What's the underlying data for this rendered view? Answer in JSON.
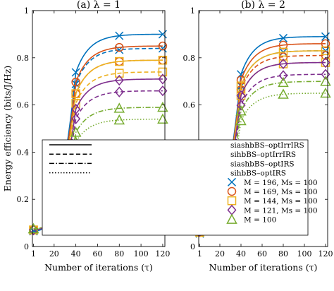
{
  "chart_data": [
    {
      "type": "line",
      "title": "(a) λ = 1",
      "xlabel": "Number of iterations (τ)",
      "ylabel": "Energy efficiency (bits/J/Hz)",
      "xlim": [
        0,
        122
      ],
      "ylim": [
        0,
        1
      ],
      "x_ticks": [
        1,
        20,
        40,
        60,
        80,
        100,
        120
      ],
      "y_ticks": [
        0,
        0.2,
        0.4,
        0.6,
        0.8,
        1
      ],
      "y_tick_labels": [
        "0",
        "0.2",
        "0.4",
        "0.6",
        "0.8",
        "1"
      ],
      "marker_x": [
        1,
        40,
        80,
        120
      ],
      "line_styles": [
        {
          "key": "solid",
          "label": "siashbBS–optIrrIRS"
        },
        {
          "key": "dashed",
          "label": "sihbBS–optIrrIRS"
        },
        {
          "key": "dashdot",
          "label": "siashbBS–optIRS"
        },
        {
          "key": "dotted",
          "label": "sihbBS–optIRS"
        }
      ],
      "series": [
        {
          "name": "M = 196, Ms = 100",
          "marker": "x",
          "color": "#0072BD",
          "curves": [
            {
              "style": "solid",
              "start": 0.065,
              "final": 0.9
            },
            {
              "style": "dashed",
              "start": 0.065,
              "final": 0.84
            }
          ]
        },
        {
          "name": "M = 169, Ms = 100",
          "marker": "circle",
          "color": "#D95319",
          "curves": [
            {
              "style": "solid",
              "start": 0.07,
              "final": 0.85
            },
            {
              "style": "dashed",
              "start": 0.07,
              "final": 0.79
            }
          ]
        },
        {
          "name": "M = 144, Ms = 100",
          "marker": "square",
          "color": "#EDB120",
          "curves": [
            {
              "style": "solid",
              "start": 0.07,
              "final": 0.79
            },
            {
              "style": "dashed",
              "start": 0.07,
              "final": 0.74
            }
          ]
        },
        {
          "name": "M = 121, Ms = 100",
          "marker": "diamond",
          "color": "#7E2F8E",
          "curves": [
            {
              "style": "solid",
              "start": 0.07,
              "final": 0.71
            },
            {
              "style": "dashed",
              "start": 0.07,
              "final": 0.66
            }
          ]
        },
        {
          "name": "M = 100",
          "marker": "triangle",
          "color": "#77AC30",
          "curves": [
            {
              "style": "dashdot",
              "start": 0.075,
              "final": 0.59
            },
            {
              "style": "dotted",
              "start": 0.075,
              "final": 0.54
            }
          ]
        }
      ]
    },
    {
      "type": "line",
      "title": "(b) λ = 2",
      "xlabel": "Number of iterations (τ)",
      "ylabel": "",
      "xlim": [
        0,
        122
      ],
      "ylim": [
        0,
        1
      ],
      "x_ticks": [
        1,
        20,
        40,
        60,
        80,
        100,
        120
      ],
      "y_ticks": [
        0,
        0.2,
        0.4,
        0.6,
        0.8,
        1
      ],
      "y_tick_labels": [
        "0",
        "0.2",
        "0.4",
        "0.6",
        "0.8",
        "1"
      ],
      "marker_x": [
        1,
        40,
        80,
        120
      ],
      "series": [
        {
          "name": "M = 196, Ms = 100",
          "marker": "x",
          "color": "#0072BD",
          "curves": [
            {
              "style": "solid",
              "start": 0.055,
              "final": 0.89
            },
            {
              "style": "dashed",
              "start": 0.055,
              "final": 0.83
            }
          ]
        },
        {
          "name": "M = 169, Ms = 100",
          "marker": "circle",
          "color": "#D95319",
          "curves": [
            {
              "style": "solid",
              "start": 0.06,
              "final": 0.86
            },
            {
              "style": "dashed",
              "start": 0.06,
              "final": 0.81
            }
          ]
        },
        {
          "name": "M = 144, Ms = 100",
          "marker": "square",
          "color": "#EDB120",
          "curves": [
            {
              "style": "solid",
              "start": 0.06,
              "final": 0.83
            },
            {
              "style": "dashed",
              "start": 0.06,
              "final": 0.78
            }
          ]
        },
        {
          "name": "M = 121, Ms = 100",
          "marker": "diamond",
          "color": "#7E2F8E",
          "curves": [
            {
              "style": "solid",
              "start": 0.065,
              "final": 0.78
            },
            {
              "style": "dashed",
              "start": 0.065,
              "final": 0.73
            }
          ]
        },
        {
          "name": "M = 100",
          "marker": "triangle",
          "color": "#77AC30",
          "curves": [
            {
              "style": "dashdot",
              "start": 0.07,
              "final": 0.7
            },
            {
              "style": "dotted",
              "start": 0.07,
              "final": 0.65
            }
          ]
        }
      ]
    }
  ]
}
